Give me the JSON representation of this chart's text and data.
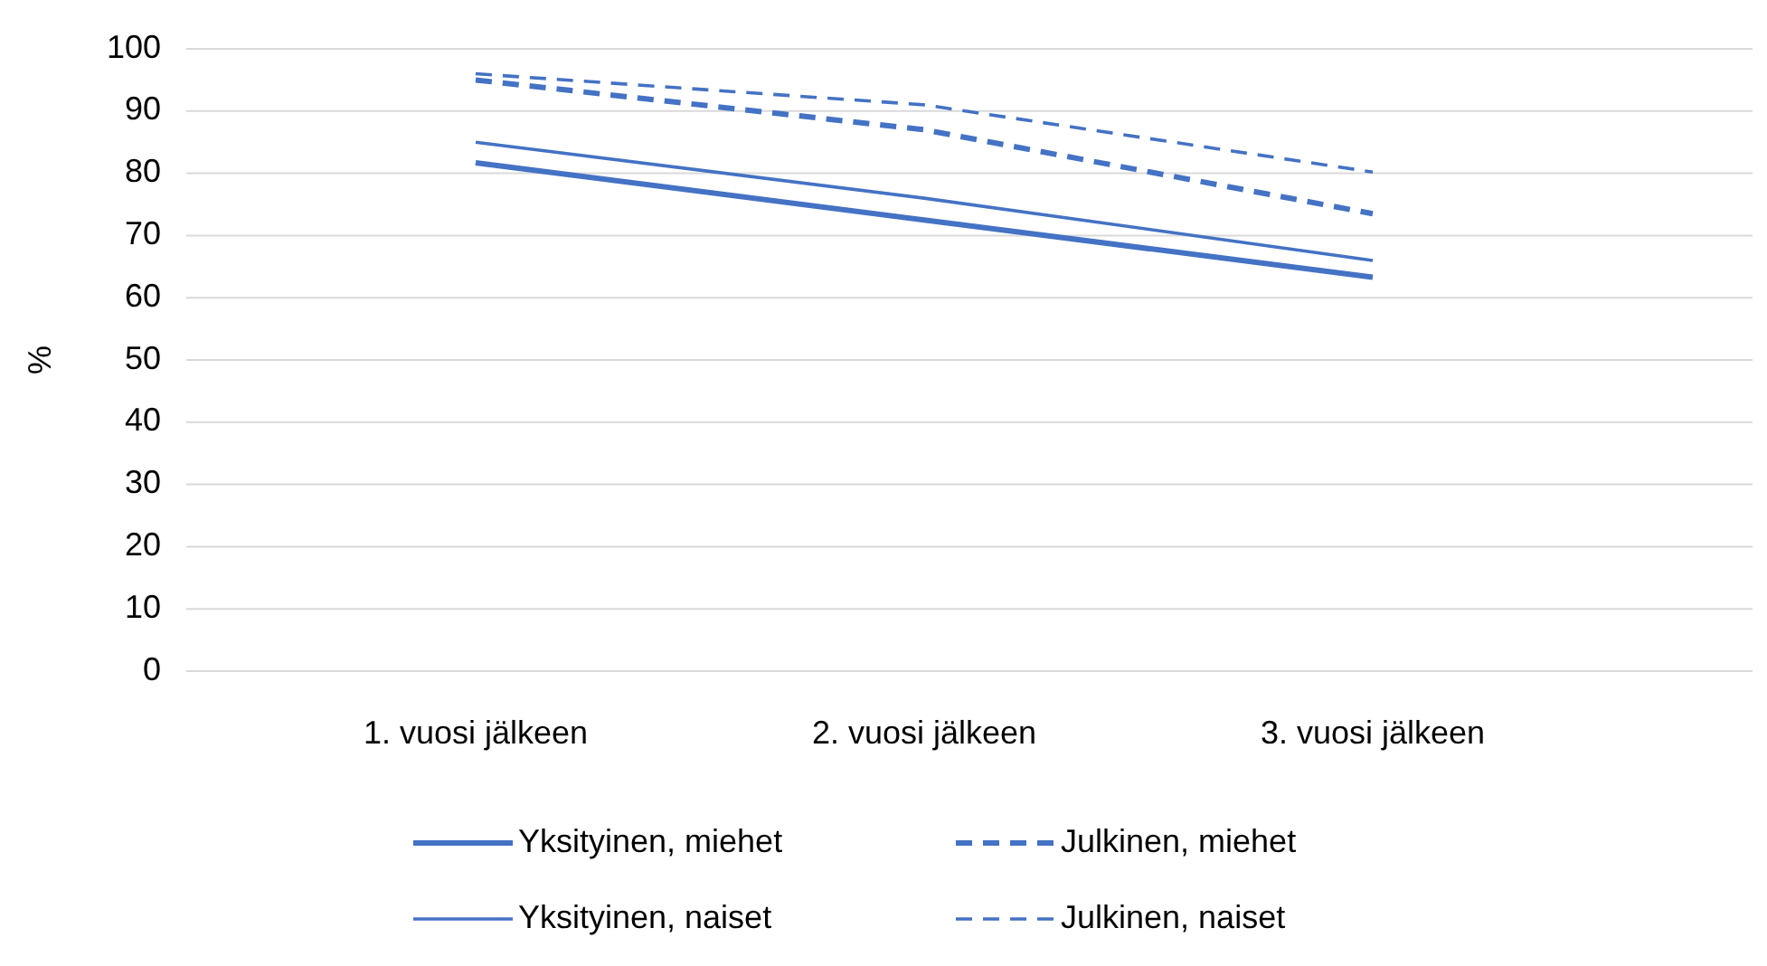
{
  "chart_data": {
    "type": "line",
    "ylabel": "%",
    "categories": [
      "1. vuosi jälkeen",
      "2. vuosi jälkeen",
      "3. vuosi jälkeen"
    ],
    "series": [
      {
        "name": "Yksityinen, miehet",
        "color": "#4472c4",
        "values": [
          81.7,
          72.5,
          63.3
        ],
        "line_style": "solid"
      },
      {
        "name": "Julkinen, miehet",
        "color": "#4472c4",
        "values": [
          95,
          87,
          73.5
        ],
        "line_style": "dashed"
      },
      {
        "name": "Yksityinen, naiset",
        "color": "#4472c4",
        "values": [
          85,
          76,
          66
        ],
        "line_style": "solid"
      },
      {
        "name": "Julkinen, naiset",
        "color": "#4472c4",
        "values": [
          96,
          91,
          80.2
        ],
        "line_style": "dashed"
      }
    ],
    "ylim": [
      0,
      100
    ],
    "yticks": [
      0,
      10,
      20,
      30,
      40,
      50,
      60,
      70,
      80,
      90,
      100
    ],
    "grid": "y",
    "legend": "bottom"
  }
}
